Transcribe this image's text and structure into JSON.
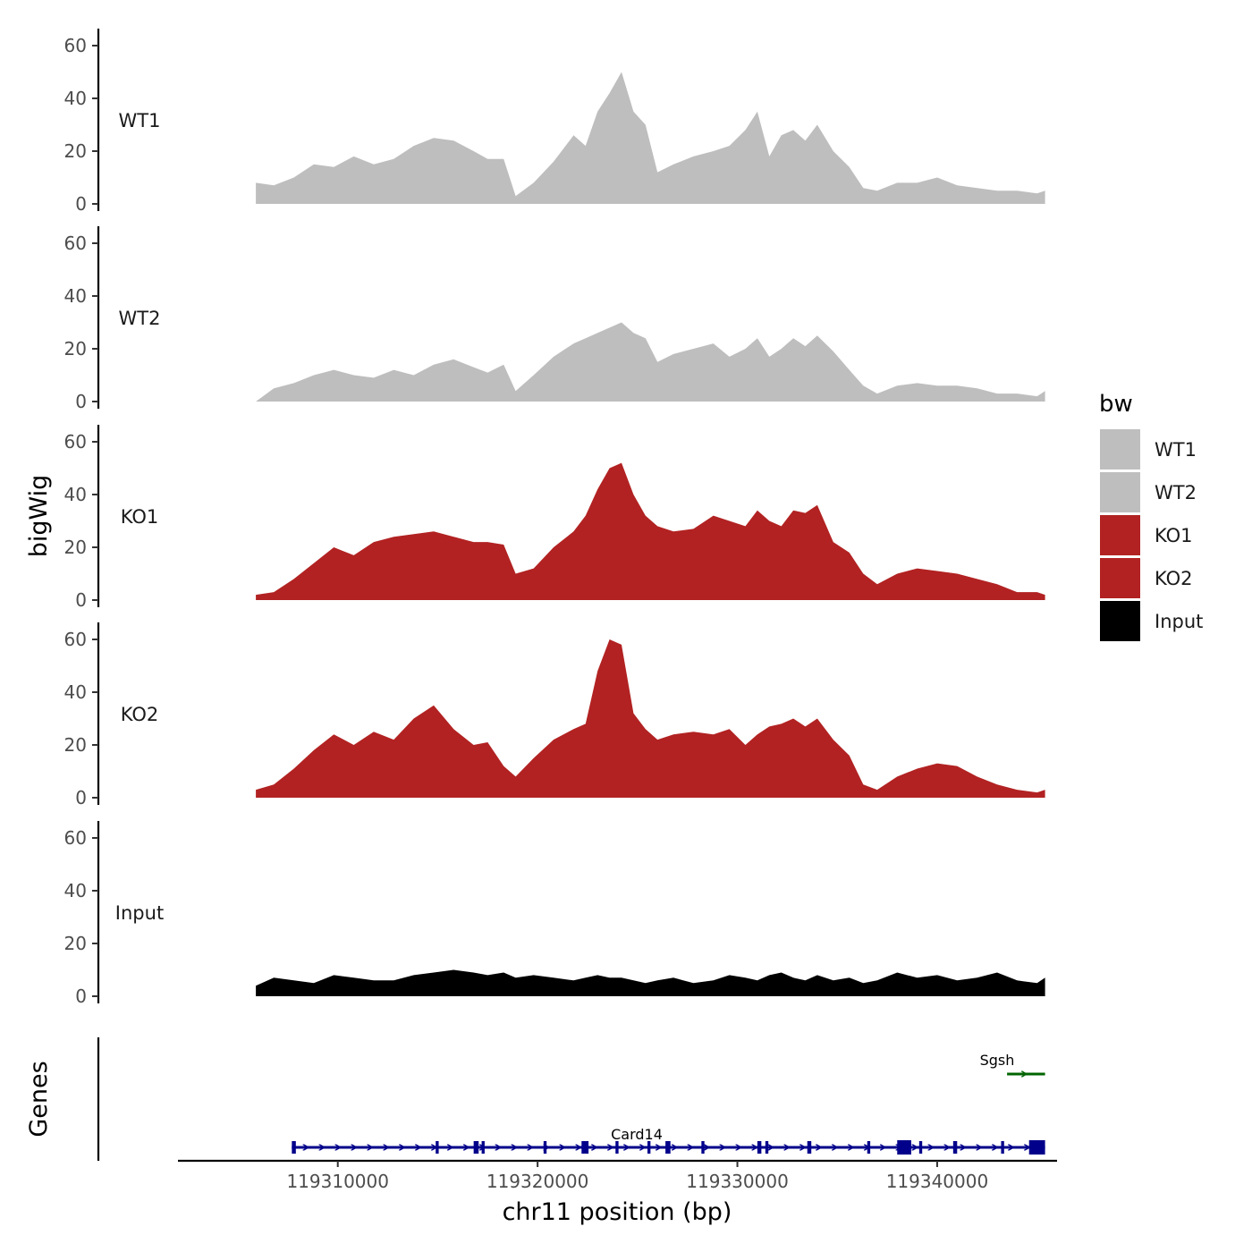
{
  "chart_data": {
    "type": "area",
    "chromosome": "chr11",
    "xlabel": "chr11 position (bp)",
    "ylabel": "bigWig",
    "genes_label": "Genes",
    "xlim": [
      119302000,
      119346000
    ],
    "x_ticks": [
      119310000,
      119320000,
      119330000,
      119340000
    ],
    "x_tick_labels": [
      "119310000",
      "119320000",
      "119330000",
      "119340000"
    ],
    "ylim": [
      0,
      65
    ],
    "y_ticks": [
      0,
      20,
      40,
      60
    ],
    "y_tick_labels": [
      "0",
      "20",
      "40",
      "60"
    ],
    "legend": {
      "title": "bw",
      "entries": [
        {
          "label": "WT1",
          "color": "#bebebe"
        },
        {
          "label": "WT2",
          "color": "#bebebe"
        },
        {
          "label": "KO1",
          "color": "#b22222"
        },
        {
          "label": "KO2",
          "color": "#b22222"
        },
        {
          "label": "Input",
          "color": "#000000"
        }
      ]
    },
    "series": [
      {
        "name": "WT1",
        "color": "#bebebe",
        "x": [
          119305900,
          119306800,
          119307800,
          119308800,
          119309800,
          119310800,
          119311800,
          119312800,
          119313800,
          119314800,
          119315800,
          119316800,
          119317500,
          119318300,
          119318900,
          119319800,
          119320800,
          119321800,
          119322400,
          119323000,
          119323600,
          119324200,
          119324800,
          119325400,
          119326000,
          119326800,
          119327800,
          119328800,
          119329600,
          119330400,
          119331000,
          119331600,
          119332200,
          119332800,
          119333400,
          119334000,
          119334800,
          119335600,
          119336300,
          119337000,
          119338000,
          119339000,
          119340000,
          119341000,
          119342000,
          119343000,
          119344000,
          119345000,
          119345400
        ],
        "values": [
          8,
          7,
          10,
          15,
          14,
          18,
          15,
          17,
          22,
          25,
          24,
          20,
          17,
          17,
          3,
          8,
          16,
          26,
          22,
          35,
          42,
          50,
          35,
          30,
          12,
          15,
          18,
          20,
          22,
          28,
          35,
          18,
          26,
          28,
          24,
          30,
          20,
          14,
          6,
          5,
          8,
          8,
          10,
          7,
          6,
          5,
          5,
          4,
          5
        ]
      },
      {
        "name": "WT2",
        "color": "#bebebe",
        "x": [
          119305900,
          119306800,
          119307800,
          119308800,
          119309800,
          119310800,
          119311800,
          119312800,
          119313800,
          119314800,
          119315800,
          119316800,
          119317500,
          119318300,
          119318900,
          119319800,
          119320800,
          119321800,
          119322400,
          119323000,
          119323600,
          119324200,
          119324800,
          119325400,
          119326000,
          119326800,
          119327800,
          119328800,
          119329600,
          119330400,
          119331000,
          119331600,
          119332200,
          119332800,
          119333400,
          119334000,
          119334800,
          119335600,
          119336300,
          119337000,
          119338000,
          119339000,
          119340000,
          119341000,
          119342000,
          119343000,
          119344000,
          119345000,
          119345400
        ],
        "values": [
          0,
          5,
          7,
          10,
          12,
          10,
          9,
          12,
          10,
          14,
          16,
          13,
          11,
          14,
          4,
          10,
          17,
          22,
          24,
          26,
          28,
          30,
          26,
          24,
          15,
          18,
          20,
          22,
          17,
          20,
          24,
          17,
          20,
          24,
          21,
          25,
          19,
          12,
          6,
          3,
          6,
          7,
          6,
          6,
          5,
          3,
          3,
          2,
          4
        ]
      },
      {
        "name": "KO1",
        "color": "#b22222",
        "x": [
          119305900,
          119306800,
          119307800,
          119308800,
          119309800,
          119310800,
          119311800,
          119312800,
          119313800,
          119314800,
          119315800,
          119316800,
          119317500,
          119318300,
          119318900,
          119319800,
          119320800,
          119321800,
          119322400,
          119323000,
          119323600,
          119324200,
          119324800,
          119325400,
          119326000,
          119326800,
          119327800,
          119328800,
          119329600,
          119330400,
          119331000,
          119331600,
          119332200,
          119332800,
          119333400,
          119334000,
          119334800,
          119335600,
          119336300,
          119337000,
          119338000,
          119339000,
          119340000,
          119341000,
          119342000,
          119343000,
          119344000,
          119345000,
          119345400
        ],
        "values": [
          2,
          3,
          8,
          14,
          20,
          17,
          22,
          24,
          25,
          26,
          24,
          22,
          22,
          21,
          10,
          12,
          20,
          26,
          32,
          42,
          50,
          52,
          40,
          32,
          28,
          26,
          27,
          32,
          30,
          28,
          34,
          30,
          28,
          34,
          33,
          36,
          22,
          18,
          10,
          6,
          10,
          12,
          11,
          10,
          8,
          6,
          3,
          3,
          2
        ]
      },
      {
        "name": "KO2",
        "color": "#b22222",
        "x": [
          119305900,
          119306800,
          119307800,
          119308800,
          119309800,
          119310800,
          119311800,
          119312800,
          119313800,
          119314800,
          119315800,
          119316800,
          119317500,
          119318300,
          119318900,
          119319800,
          119320800,
          119321800,
          119322400,
          119323000,
          119323600,
          119324200,
          119324800,
          119325400,
          119326000,
          119326800,
          119327800,
          119328800,
          119329600,
          119330400,
          119331000,
          119331600,
          119332200,
          119332800,
          119333400,
          119334000,
          119334800,
          119335600,
          119336300,
          119337000,
          119338000,
          119339000,
          119340000,
          119341000,
          119342000,
          119343000,
          119344000,
          119345000,
          119345400
        ],
        "values": [
          3,
          5,
          11,
          18,
          24,
          20,
          25,
          22,
          30,
          35,
          26,
          20,
          21,
          12,
          8,
          15,
          22,
          26,
          28,
          48,
          60,
          58,
          32,
          26,
          22,
          24,
          25,
          24,
          26,
          20,
          24,
          27,
          28,
          30,
          27,
          30,
          22,
          16,
          5,
          3,
          8,
          11,
          13,
          12,
          8,
          5,
          3,
          2,
          3
        ]
      },
      {
        "name": "Input",
        "color": "#000000",
        "x": [
          119305900,
          119306800,
          119307800,
          119308800,
          119309800,
          119310800,
          119311800,
          119312800,
          119313800,
          119314800,
          119315800,
          119316800,
          119317500,
          119318300,
          119318900,
          119319800,
          119320800,
          119321800,
          119322400,
          119323000,
          119323600,
          119324200,
          119324800,
          119325400,
          119326000,
          119326800,
          119327800,
          119328800,
          119329600,
          119330400,
          119331000,
          119331600,
          119332200,
          119332800,
          119333400,
          119334000,
          119334800,
          119335600,
          119336300,
          119337000,
          119338000,
          119339000,
          119340000,
          119341000,
          119342000,
          119343000,
          119344000,
          119345000,
          119345400
        ],
        "values": [
          4,
          7,
          6,
          5,
          8,
          7,
          6,
          6,
          8,
          9,
          10,
          9,
          8,
          9,
          7,
          8,
          7,
          6,
          7,
          8,
          7,
          7,
          6,
          5,
          6,
          7,
          5,
          6,
          8,
          7,
          6,
          8,
          9,
          7,
          6,
          8,
          6,
          7,
          5,
          6,
          9,
          7,
          8,
          6,
          7,
          9,
          6,
          5,
          7
        ]
      }
    ],
    "genes": [
      {
        "name": "Card14",
        "strand": "+",
        "color": "#00008b",
        "start": 119307700,
        "end": 119345400,
        "exons": [
          [
            119307700,
            119307900
          ],
          [
            119314900,
            119315050
          ],
          [
            119316800,
            119317050
          ],
          [
            119317200,
            119317350
          ],
          [
            119320300,
            119320450
          ],
          [
            119322200,
            119322550
          ],
          [
            119323900,
            119324050
          ],
          [
            119325500,
            119325650
          ],
          [
            119326400,
            119326650
          ],
          [
            119328200,
            119328350
          ],
          [
            119331000,
            119331200
          ],
          [
            119331400,
            119331550
          ],
          [
            119333500,
            119333700
          ],
          [
            119336500,
            119336650
          ],
          [
            119338000,
            119338700
          ],
          [
            119339100,
            119339250
          ],
          [
            119340800,
            119341000
          ],
          [
            119343200,
            119343350
          ],
          [
            119344600,
            119345400
          ]
        ]
      },
      {
        "name": "Sgsh",
        "strand": "-",
        "color": "#006400",
        "start": 119343500,
        "end": 119345400,
        "exons": []
      }
    ]
  }
}
